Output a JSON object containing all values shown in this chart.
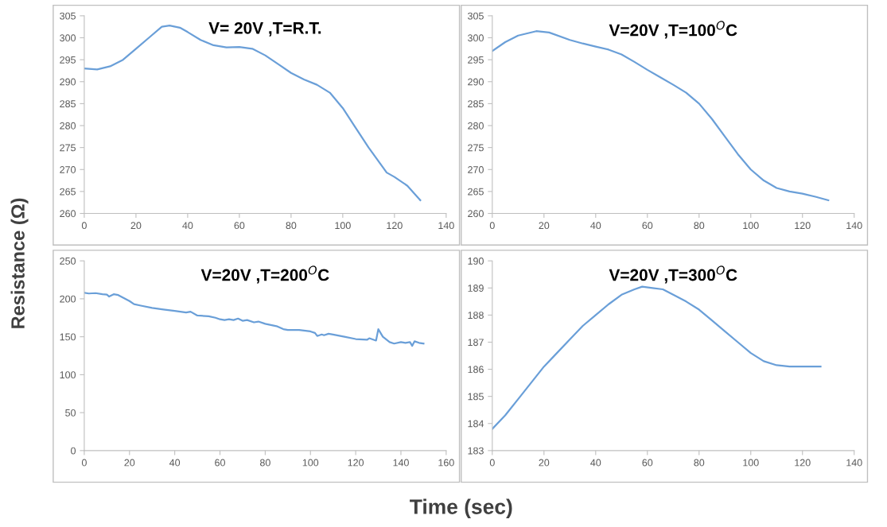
{
  "chart_data": [
    {
      "type": "line",
      "title": "V= 20V ,T=R.T.",
      "ylabel": "Resistance (Ω)",
      "xlim": [
        0,
        140
      ],
      "xticks": [
        0,
        20,
        40,
        60,
        80,
        100,
        120,
        140
      ],
      "ylim": [
        260,
        305
      ],
      "yticks": [
        260,
        265,
        270,
        275,
        280,
        285,
        290,
        295,
        300,
        305
      ],
      "grid": false,
      "legend": false,
      "series": [
        {
          "color": "#6a9fd8",
          "x": [
            0,
            5,
            10,
            15,
            20,
            25,
            30,
            33,
            37,
            40,
            45,
            50,
            55,
            60,
            65,
            70,
            75,
            80,
            85,
            90,
            95,
            100,
            105,
            110,
            117,
            120,
            125,
            130
          ],
          "values": [
            293,
            292.8,
            293.5,
            295,
            297.5,
            300,
            302.5,
            302.8,
            302.3,
            301.3,
            299.5,
            298.3,
            297.8,
            297.9,
            297.5,
            296,
            294,
            292,
            290.5,
            289.3,
            287.5,
            284,
            279.5,
            275,
            269.3,
            268.3,
            266.3,
            263
          ]
        }
      ]
    },
    {
      "type": "line",
      "title": "V=20V ,T=100$^{O}$C",
      "xlim": [
        0,
        140
      ],
      "xticks": [
        0,
        20,
        40,
        60,
        80,
        100,
        120,
        140
      ],
      "ylim": [
        260,
        305
      ],
      "yticks": [
        260,
        265,
        270,
        275,
        280,
        285,
        290,
        295,
        300,
        305
      ],
      "grid": false,
      "legend": false,
      "series": [
        {
          "color": "#6a9fd8",
          "x": [
            0,
            5,
            10,
            17,
            22,
            30,
            35,
            40,
            45,
            50,
            55,
            60,
            65,
            70,
            75,
            80,
            85,
            90,
            95,
            100,
            105,
            110,
            115,
            120,
            125,
            130
          ],
          "values": [
            297,
            299,
            300.5,
            301.5,
            301.2,
            299.5,
            298.7,
            298,
            297.3,
            296.2,
            294.5,
            292.7,
            291,
            289.3,
            287.5,
            285,
            281.5,
            277.5,
            273.5,
            270,
            267.5,
            265.8,
            265,
            264.5,
            263.8,
            263
          ]
        }
      ]
    },
    {
      "type": "line",
      "title": "V=20V ,T=200$^{O}$C",
      "xlabel": "Time (sec)",
      "xlim": [
        0,
        160
      ],
      "xticks": [
        0,
        20,
        40,
        60,
        80,
        100,
        120,
        140,
        160
      ],
      "ylim": [
        0,
        250
      ],
      "yticks": [
        0,
        50,
        100,
        150,
        200,
        250
      ],
      "grid": false,
      "legend": false,
      "series": [
        {
          "color": "#6a9fd8",
          "x": [
            0,
            2,
            5,
            8,
            10,
            11,
            13,
            15,
            20,
            22,
            25,
            30,
            35,
            40,
            45,
            47,
            50,
            55,
            58,
            60,
            62,
            64,
            66,
            68,
            70,
            72,
            75,
            77,
            80,
            85,
            88,
            90,
            95,
            100,
            102,
            103,
            105,
            106,
            108,
            110,
            115,
            120,
            125,
            126,
            129,
            130,
            132,
            135,
            137,
            140,
            142,
            144,
            145,
            146,
            148,
            150
          ],
          "values": [
            208,
            207,
            207.5,
            206,
            205.5,
            203,
            206,
            205,
            197,
            193,
            191,
            188,
            186,
            184,
            182,
            183,
            178,
            177,
            175,
            173,
            172,
            173,
            172,
            174,
            171,
            172,
            169,
            170,
            167,
            164,
            160,
            159,
            159,
            157,
            155,
            151,
            153,
            152,
            154,
            153,
            150,
            147,
            146,
            148,
            145,
            160,
            150,
            143,
            141,
            143,
            142,
            143,
            138,
            144,
            142,
            141
          ]
        }
      ]
    },
    {
      "type": "line",
      "title": "V=20V ,T=300$^{O}$C",
      "xlim": [
        0,
        140
      ],
      "xticks": [
        0,
        20,
        40,
        60,
        80,
        100,
        120,
        140
      ],
      "ylim": [
        183,
        190
      ],
      "yticks": [
        183,
        184,
        185,
        186,
        187,
        188,
        189,
        190
      ],
      "grid": false,
      "legend": false,
      "series": [
        {
          "color": "#6a9fd8",
          "x": [
            0,
            5,
            10,
            15,
            20,
            25,
            30,
            35,
            40,
            45,
            50,
            55,
            58,
            62,
            66,
            70,
            75,
            80,
            85,
            90,
            95,
            100,
            105,
            110,
            115,
            120,
            127
          ],
          "values": [
            183.8,
            184.3,
            184.9,
            185.5,
            186.1,
            186.6,
            187.1,
            187.6,
            188.0,
            188.4,
            188.75,
            188.95,
            189.05,
            189.0,
            188.95,
            188.75,
            188.5,
            188.2,
            187.8,
            187.4,
            187.0,
            186.6,
            186.3,
            186.15,
            186.1,
            186.1,
            186.1
          ]
        }
      ]
    }
  ]
}
